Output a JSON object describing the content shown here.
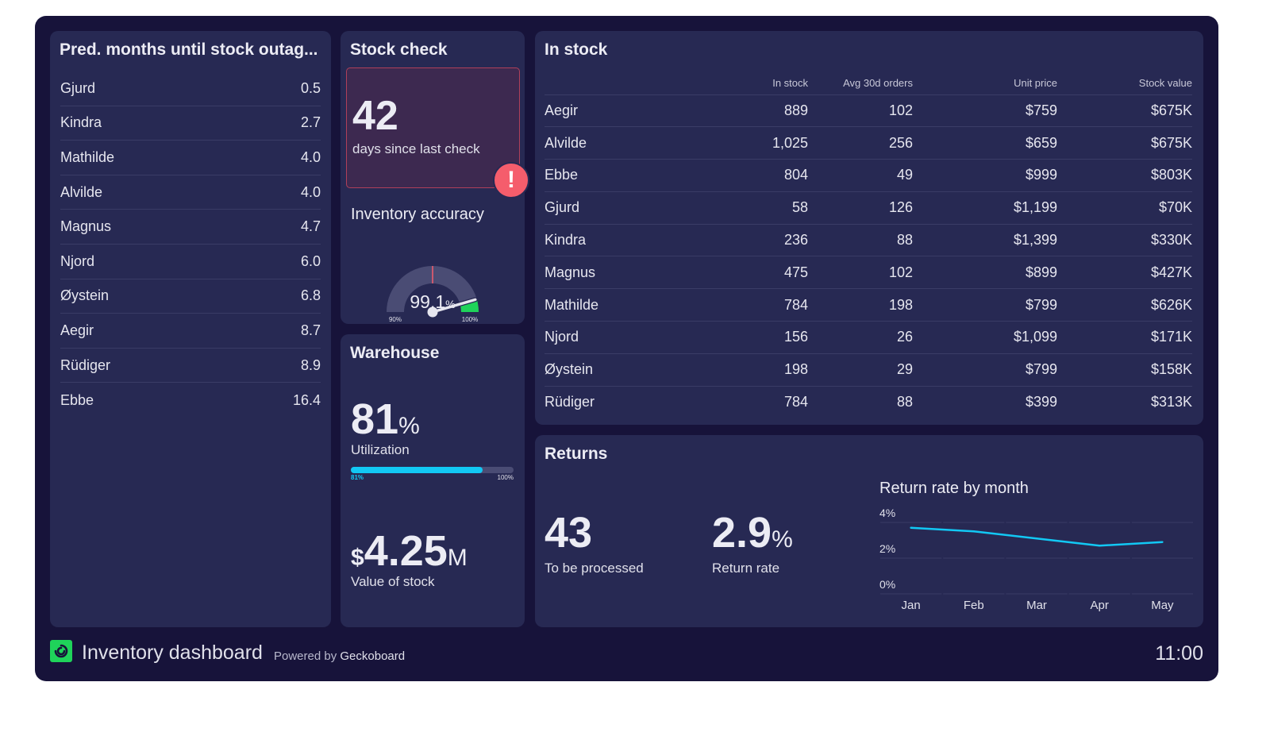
{
  "colors": {
    "accent_cyan": "#12c8f4",
    "alert_red": "#f55d6c",
    "gauge_green": "#1fd35a",
    "panel_bg": "#272953",
    "dashboard_bg": "#17133a"
  },
  "outage": {
    "title": "Pred. months until stock outag...",
    "items": [
      {
        "name": "Gjurd",
        "value": "0.5"
      },
      {
        "name": "Kindra",
        "value": "2.7"
      },
      {
        "name": "Mathilde",
        "value": "4.0"
      },
      {
        "name": "Alvilde",
        "value": "4.0"
      },
      {
        "name": "Magnus",
        "value": "4.7"
      },
      {
        "name": "Njord",
        "value": "6.0"
      },
      {
        "name": "Øystein",
        "value": "6.8"
      },
      {
        "name": "Aegir",
        "value": "8.7"
      },
      {
        "name": "Rüdiger",
        "value": "8.9"
      },
      {
        "name": "Ebbe",
        "value": "16.4"
      }
    ]
  },
  "stock_check": {
    "title": "Stock check",
    "days_value": "42",
    "days_label": "days since last check",
    "alert_icon": "!",
    "accuracy_title": "Inventory accuracy",
    "accuracy_value": "99.1",
    "accuracy_unit": "%",
    "gauge": {
      "min": 90,
      "max": 100,
      "value": 99.1,
      "target": 95,
      "min_label": "90",
      "max_label": "100",
      "unit": "%"
    }
  },
  "warehouse": {
    "title": "Warehouse",
    "utilization_value": "81",
    "utilization_unit": "%",
    "utilization_label": "Utilization",
    "progress": {
      "value": 0.81,
      "min_label": "81%",
      "max_label": "100%"
    },
    "stock_prefix": "$",
    "stock_value": "4.25",
    "stock_suffix": "M",
    "stock_label": "Value of stock"
  },
  "in_stock": {
    "title": "In stock",
    "columns": [
      "",
      "In stock",
      "Avg 30d orders",
      "Unit price",
      "Stock value"
    ],
    "rows": [
      [
        "Aegir",
        "889",
        "102",
        "$759",
        "$675K"
      ],
      [
        "Alvilde",
        "1,025",
        "256",
        "$659",
        "$675K"
      ],
      [
        "Ebbe",
        "804",
        "49",
        "$999",
        "$803K"
      ],
      [
        "Gjurd",
        "58",
        "126",
        "$1,199",
        "$70K"
      ],
      [
        "Kindra",
        "236",
        "88",
        "$1,399",
        "$330K"
      ],
      [
        "Magnus",
        "475",
        "102",
        "$899",
        "$427K"
      ],
      [
        "Mathilde",
        "784",
        "198",
        "$799",
        "$626K"
      ],
      [
        "Njord",
        "156",
        "26",
        "$1,099",
        "$171K"
      ],
      [
        "Øystein",
        "198",
        "29",
        "$799",
        "$158K"
      ],
      [
        "Rüdiger",
        "784",
        "88",
        "$399",
        "$313K"
      ]
    ]
  },
  "returns": {
    "title": "Returns",
    "to_process_value": "43",
    "to_process_label": "To be processed",
    "rate_value": "2.9",
    "rate_unit": "%",
    "rate_label": "Return rate"
  },
  "chart_data": {
    "type": "line",
    "title": "Return rate by month",
    "categories": [
      "Jan",
      "Feb",
      "Mar",
      "Apr",
      "May"
    ],
    "series": [
      {
        "name": "Return rate",
        "values": [
          3.7,
          3.5,
          3.1,
          2.7,
          2.9
        ],
        "color": "#12c8f4"
      }
    ],
    "xlabel": "",
    "ylabel": "",
    "ylim": [
      0,
      4
    ],
    "yticks": [
      0,
      2,
      4
    ],
    "ytick_labels": [
      "0%",
      "2%",
      "4%"
    ],
    "grid": true,
    "legend": "none"
  },
  "footer": {
    "title": "Inventory dashboard",
    "powered_prefix": "Powered by",
    "powered_brand": "Geckoboard",
    "time": "11:00"
  }
}
